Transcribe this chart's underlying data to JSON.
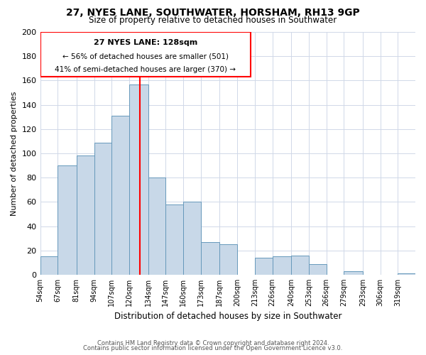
{
  "title": "27, NYES LANE, SOUTHWATER, HORSHAM, RH13 9GP",
  "subtitle": "Size of property relative to detached houses in Southwater",
  "xlabel": "Distribution of detached houses by size in Southwater",
  "ylabel": "Number of detached properties",
  "bar_color": "#c8d8e8",
  "bar_edge_color": "#6699bb",
  "bin_labels": [
    "54sqm",
    "67sqm",
    "81sqm",
    "94sqm",
    "107sqm",
    "120sqm",
    "134sqm",
    "147sqm",
    "160sqm",
    "173sqm",
    "187sqm",
    "200sqm",
    "213sqm",
    "226sqm",
    "240sqm",
    "253sqm",
    "266sqm",
    "279sqm",
    "293sqm",
    "306sqm",
    "319sqm"
  ],
  "bin_edges": [
    54,
    67,
    81,
    94,
    107,
    120,
    134,
    147,
    160,
    173,
    187,
    200,
    213,
    226,
    240,
    253,
    266,
    279,
    293,
    306,
    319
  ],
  "counts": [
    15,
    90,
    98,
    109,
    131,
    157,
    80,
    58,
    60,
    27,
    25,
    0,
    14,
    15,
    16,
    9,
    0,
    3,
    0,
    0,
    1
  ],
  "property_size": 128,
  "annotation_title": "27 NYES LANE: 128sqm",
  "annotation_line1": "← 56% of detached houses are smaller (501)",
  "annotation_line2": "41% of semi-detached houses are larger (370) →",
  "vline_x": 128,
  "ylim": [
    0,
    200
  ],
  "yticks": [
    0,
    20,
    40,
    60,
    80,
    100,
    120,
    140,
    160,
    180,
    200
  ],
  "footer_line1": "Contains HM Land Registry data © Crown copyright and database right 2024.",
  "footer_line2": "Contains public sector information licensed under the Open Government Licence v3.0.",
  "background_color": "#ffffff",
  "grid_color": "#d0d8e8",
  "title_fontsize": 10,
  "subtitle_fontsize": 8.5,
  "ylabel_fontsize": 8,
  "xlabel_fontsize": 8.5,
  "tick_fontsize": 7,
  "ytick_fontsize": 8,
  "footer_fontsize": 6,
  "ann_title_fontsize": 8,
  "ann_text_fontsize": 7.5
}
